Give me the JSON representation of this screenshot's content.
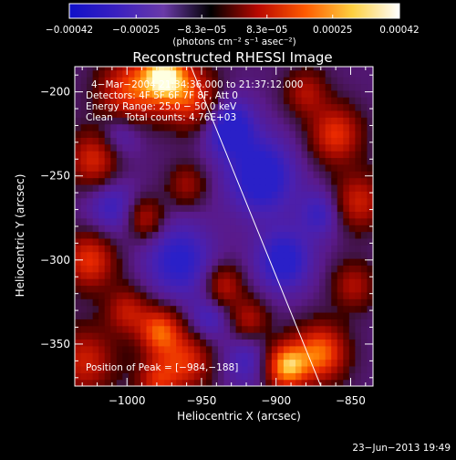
{
  "chart_data": {
    "type": "heatmap",
    "title": "Reconstructed RHESSI Image",
    "xlabel": "Heliocentric X (arcsec)",
    "ylabel": "Heliocentric Y (arcsec)",
    "xlim": [
      -1035,
      -835
    ],
    "ylim": [
      -375,
      -185
    ],
    "x_ticks": [
      {
        "value": -1000,
        "label": "−1000"
      },
      {
        "value": -950,
        "label": "−950"
      },
      {
        "value": -900,
        "label": "−900"
      },
      {
        "value": -850,
        "label": "−850"
      }
    ],
    "y_ticks": [
      {
        "value": -200,
        "label": "−200"
      },
      {
        "value": -250,
        "label": "−250"
      },
      {
        "value": -300,
        "label": "−300"
      },
      {
        "value": -350,
        "label": "−350"
      }
    ],
    "colorbar": {
      "range": [
        -0.00042,
        0.00042
      ],
      "tick_values": [
        -0.00042,
        -0.00025,
        -8.3e-05,
        8.3e-05,
        0.00025,
        0.00042
      ],
      "tick_labels": [
        "−0.00042",
        "−0.00025",
        "−8.3e−05",
        "8.3e−05",
        "0.00025",
        "0.00042"
      ],
      "unit_label": "(photons cm⁻² s⁻¹ asec⁻²)",
      "colors": [
        "#1010c8",
        "#3a20c0",
        "#6a3aa8",
        "#000000",
        "#b80800",
        "#ff5a00",
        "#ffd040",
        "#ffffff"
      ]
    },
    "annotations": [
      "4−Mar−2004 21:34:36.000 to 21:37:12.000",
      "Detectors: 4F 5F 6F 7F 8F, Att 0",
      "Energy Range: 25.0 − 50.0 keV",
      "Clean    Total counts: 4.76E+03"
    ],
    "peak_label": "Position of Peak = [−984,−188]",
    "peak": {
      "x": -984,
      "y": -188
    },
    "limb_line": [
      {
        "x": -958,
        "y": -183
      },
      {
        "x": -870,
        "y": -375
      }
    ],
    "blobs": [
      {
        "x": -975,
        "y": -190,
        "amp": 1.0,
        "s": 12
      },
      {
        "x": -1000,
        "y": -200,
        "amp": 0.6,
        "s": 14
      },
      {
        "x": -955,
        "y": -205,
        "amp": 0.55,
        "s": 13
      },
      {
        "x": -1022,
        "y": -240,
        "amp": 0.55,
        "s": 12
      },
      {
        "x": -1025,
        "y": -300,
        "amp": 0.6,
        "s": 12
      },
      {
        "x": -1028,
        "y": -360,
        "amp": 0.5,
        "s": 14
      },
      {
        "x": -1000,
        "y": -330,
        "amp": 0.45,
        "s": 10
      },
      {
        "x": -988,
        "y": -275,
        "amp": 0.45,
        "s": 9
      },
      {
        "x": -960,
        "y": -255,
        "amp": 0.35,
        "s": 9
      },
      {
        "x": -978,
        "y": -342,
        "amp": 0.7,
        "s": 10
      },
      {
        "x": -960,
        "y": -360,
        "amp": 0.55,
        "s": 12
      },
      {
        "x": -980,
        "y": -372,
        "amp": 0.5,
        "s": 10
      },
      {
        "x": -935,
        "y": -315,
        "amp": 0.45,
        "s": 9
      },
      {
        "x": -918,
        "y": -335,
        "amp": 0.4,
        "s": 9
      },
      {
        "x": -893,
        "y": -363,
        "amp": 0.9,
        "s": 10
      },
      {
        "x": -870,
        "y": -355,
        "amp": 0.75,
        "s": 12
      },
      {
        "x": -860,
        "y": -225,
        "amp": 0.6,
        "s": 12
      },
      {
        "x": -845,
        "y": -265,
        "amp": 0.5,
        "s": 12
      },
      {
        "x": -848,
        "y": -315,
        "amp": 0.4,
        "s": 10
      },
      {
        "x": -880,
        "y": -200,
        "amp": 0.4,
        "s": 10
      },
      {
        "x": -910,
        "y": -250,
        "amp": -0.55,
        "s": 16
      },
      {
        "x": -932,
        "y": -220,
        "amp": -0.55,
        "s": 12
      },
      {
        "x": -965,
        "y": -300,
        "amp": -0.45,
        "s": 16
      },
      {
        "x": -895,
        "y": -300,
        "amp": -0.5,
        "s": 13
      },
      {
        "x": -1010,
        "y": -268,
        "amp": -0.35,
        "s": 12
      },
      {
        "x": -870,
        "y": -272,
        "amp": -0.35,
        "s": 10
      },
      {
        "x": -920,
        "y": -360,
        "amp": -0.3,
        "s": 11
      },
      {
        "x": -1005,
        "y": -225,
        "amp": -0.3,
        "s": 10
      },
      {
        "x": -945,
        "y": -335,
        "amp": -0.3,
        "s": 9
      }
    ]
  },
  "footer": {
    "date": "23−Jun−2013 19:49"
  }
}
